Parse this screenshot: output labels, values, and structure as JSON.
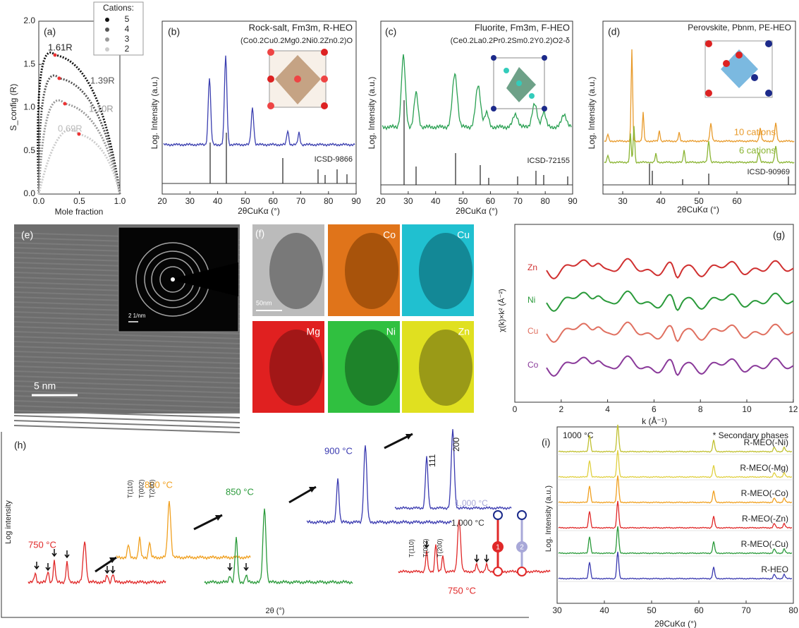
{
  "panel_a": {
    "label": "(a)",
    "y_label": "S_config (R)",
    "x_label": "Mole fraction",
    "legend_title": "Cations:",
    "legend": [
      "5",
      "4",
      "3",
      "2"
    ],
    "annotations": [
      "1.61R",
      "1.39R",
      "1.10R",
      "0.69R"
    ],
    "xticks": [
      "0.0",
      "0.5",
      "1.0"
    ],
    "yticks": [
      "0.0",
      "0.5",
      "1.0",
      "1.5",
      "2.0"
    ]
  },
  "panel_b": {
    "label": "(b)",
    "title": "Rock-salt, Fm3m, R-HEO",
    "formula": "(Co0.2Cu0.2Mg0.2Ni0.2Zn0.2)O",
    "reference": "ICSD-9866",
    "y_label": "Log. Intensity (a.u.)",
    "x_label": "2θCuKα (°)",
    "xticks": [
      "20",
      "30",
      "40",
      "50",
      "60",
      "70",
      "80",
      "90"
    ]
  },
  "panel_c": {
    "label": "(c)",
    "title": "Fluorite, Fm3m, F-HEO",
    "formula": "(Ce0.2La0.2Pr0.2Sm0.2Y0.2)O2-δ",
    "reference": "ICSD-72155",
    "y_label": "Log. Intensity (a.u.)",
    "x_label": "2θCuKα (°)",
    "xticks": [
      "20",
      "30",
      "40",
      "50",
      "60",
      "70",
      "80",
      "90"
    ]
  },
  "panel_d": {
    "label": "(d)",
    "title": "Perovskite, Pbnm, PE-HEO",
    "series": [
      "10 cations",
      "6 cations"
    ],
    "reference": "ICSD-90969",
    "y_label": "Log. Intensity (a.u.)",
    "x_label": "2θCuKα (°)",
    "xticks": [
      "30",
      "40",
      "50",
      "60"
    ]
  },
  "panel_e": {
    "label": "(e)",
    "scale": "5  nm",
    "inset_scale": "2 1/nm"
  },
  "panel_f": {
    "label": "(f)",
    "scale": "50nm",
    "elements": [
      "Co",
      "Cu",
      "Mg",
      "Ni",
      "Zn"
    ]
  },
  "panel_g": {
    "label": "(g)",
    "y_label": "χ(k)×k² (Å⁻²)",
    "x_label": "k (Å⁻¹)",
    "series": [
      "Zn",
      "Ni",
      "Cu",
      "Co"
    ],
    "xticks": [
      "0",
      "2",
      "4",
      "6",
      "8",
      "10",
      "12"
    ]
  },
  "panel_h": {
    "label": "(h)",
    "y_label": "Log intensity",
    "x_label": "2θ (°)",
    "temperatures": [
      "750 °C",
      "800 °C",
      "850 °C",
      "900 °C",
      "1,000 °C",
      "1,000 °C",
      "750 °C"
    ],
    "peak_labels": [
      "T(110)",
      "T(002)",
      "T(200)",
      "111",
      "200",
      "T(110)",
      "T(002)",
      "T(200)"
    ],
    "steps": [
      "1",
      "2"
    ]
  },
  "panel_i": {
    "label": "(i)",
    "temperature": "1000 °C",
    "note": "* Secondary phases",
    "series": [
      "R-MEO(-Ni)",
      "R-MEO(-Mg)",
      "R-MEO(-Co)",
      "R-MEO(-Zn)",
      "R-MEO(-Cu)",
      "R-HEO"
    ],
    "y_label": "Log. Intensity (a.u.)",
    "x_label": "2θCuKα (°)",
    "xticks": [
      "30",
      "40",
      "50",
      "60",
      "70",
      "80"
    ]
  }
}
